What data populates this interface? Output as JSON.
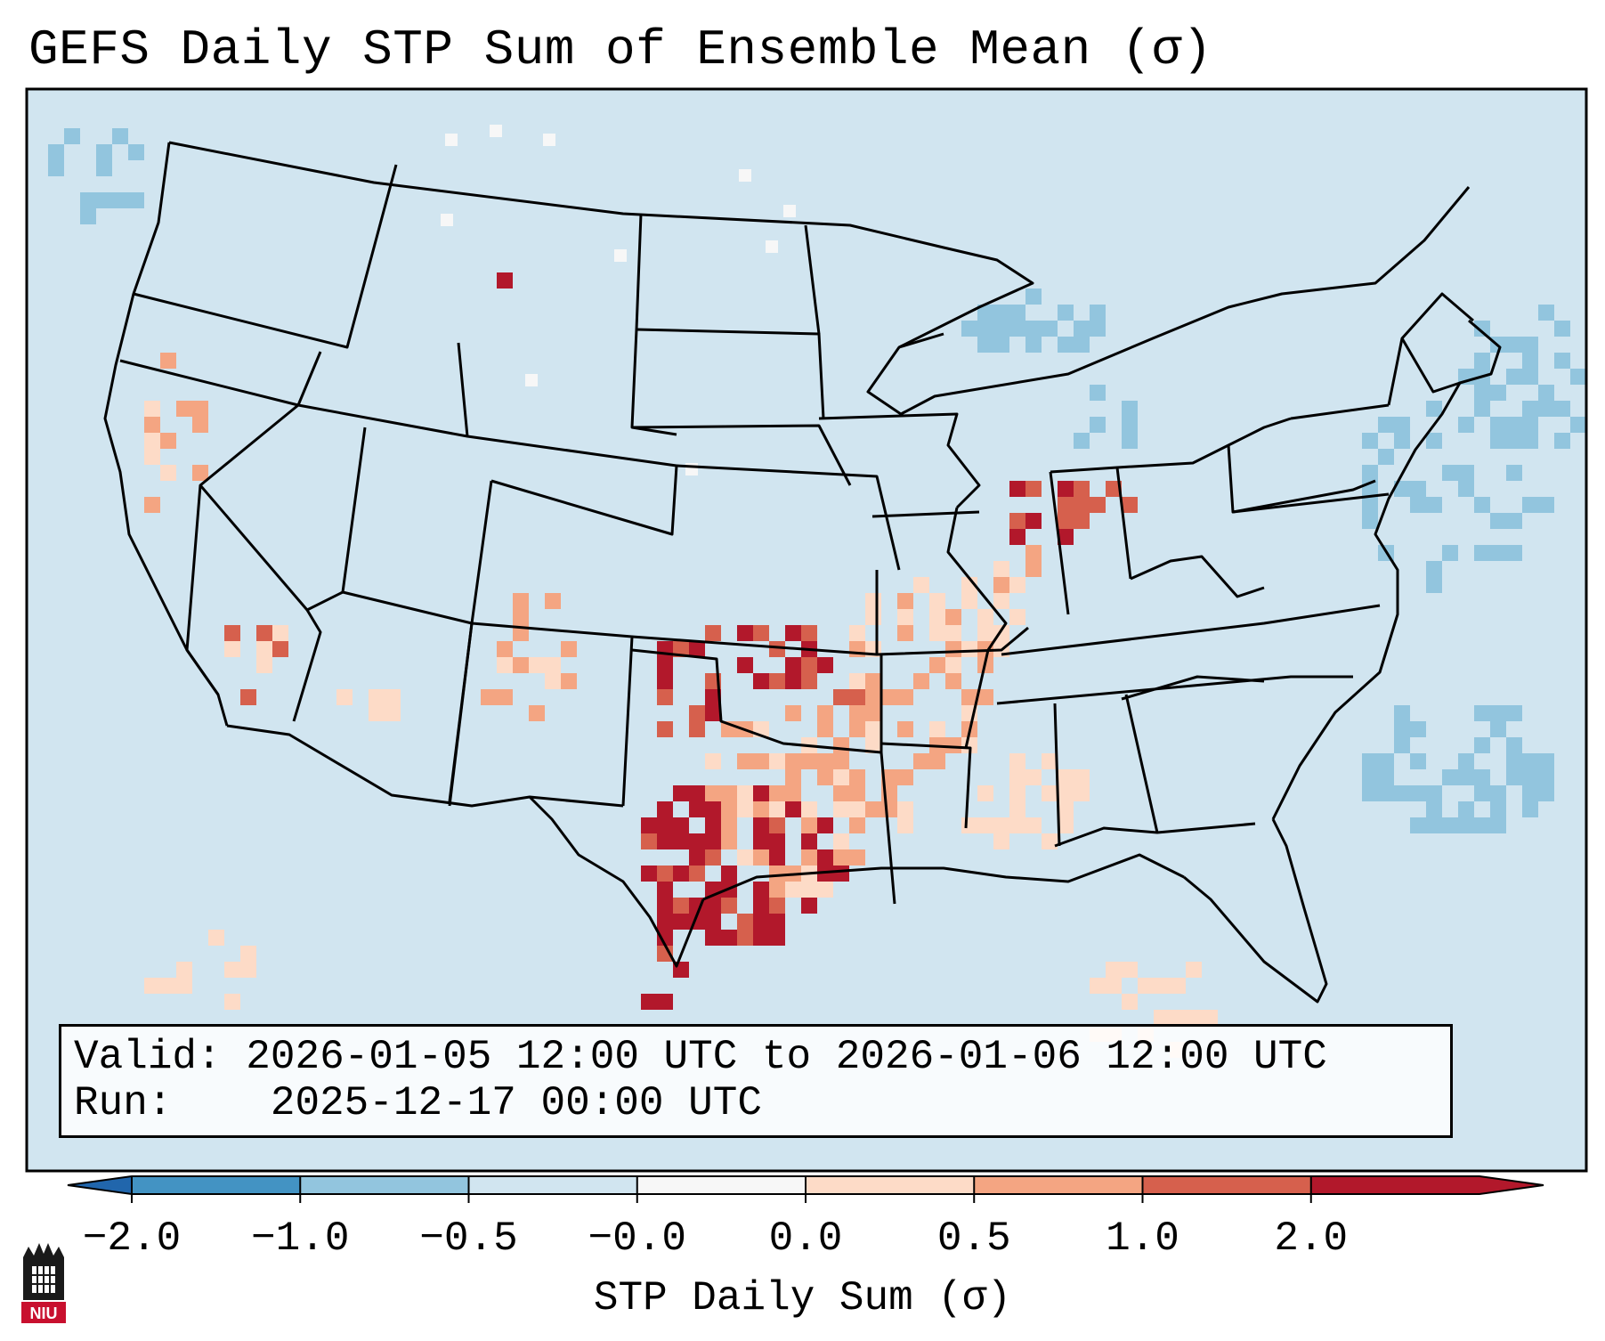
{
  "title": "GEFS Daily STP Sum of Ensemble Mean (σ)",
  "valid": {
    "label": "Valid:",
    "value": "2026-01-05 12:00 UTC to 2026-01-06 12:00 UTC"
  },
  "run": {
    "label": "Run:",
    "value": "2025-12-17 00:00 UTC"
  },
  "colorbar": {
    "title": "STP Daily Sum (σ)",
    "ticks": [
      "−2.0",
      "−1.0",
      "−0.5",
      "−0.0",
      "0.0",
      "0.5",
      "1.0",
      "2.0"
    ],
    "bin_colors": [
      "#4393c3",
      "#92c5de",
      "#d1e5f0",
      "#f7f7f7",
      "#fddbc7",
      "#f4a582",
      "#d6604d",
      "#b2182b"
    ],
    "under_color": "#2166ac",
    "over_color": "#b2182b"
  },
  "colors": {
    "ocean_background": "#d1e5f0",
    "state_border": "#000000"
  },
  "logo": {
    "text": "NIU",
    "color": "#c8102e"
  },
  "anomaly_regions": [
    {
      "name": "southern-plains-texas-oklahoma",
      "level": 2.0
    },
    {
      "name": "central-plains-missouri-arkansas",
      "level": 0.5
    },
    {
      "name": "indiana-ohio-corridor",
      "level": 2.0
    },
    {
      "name": "california-coast",
      "level": 0.5
    },
    {
      "name": "great-lakes",
      "level": -1.0
    },
    {
      "name": "western-atlantic",
      "level": -1.0
    }
  ]
}
